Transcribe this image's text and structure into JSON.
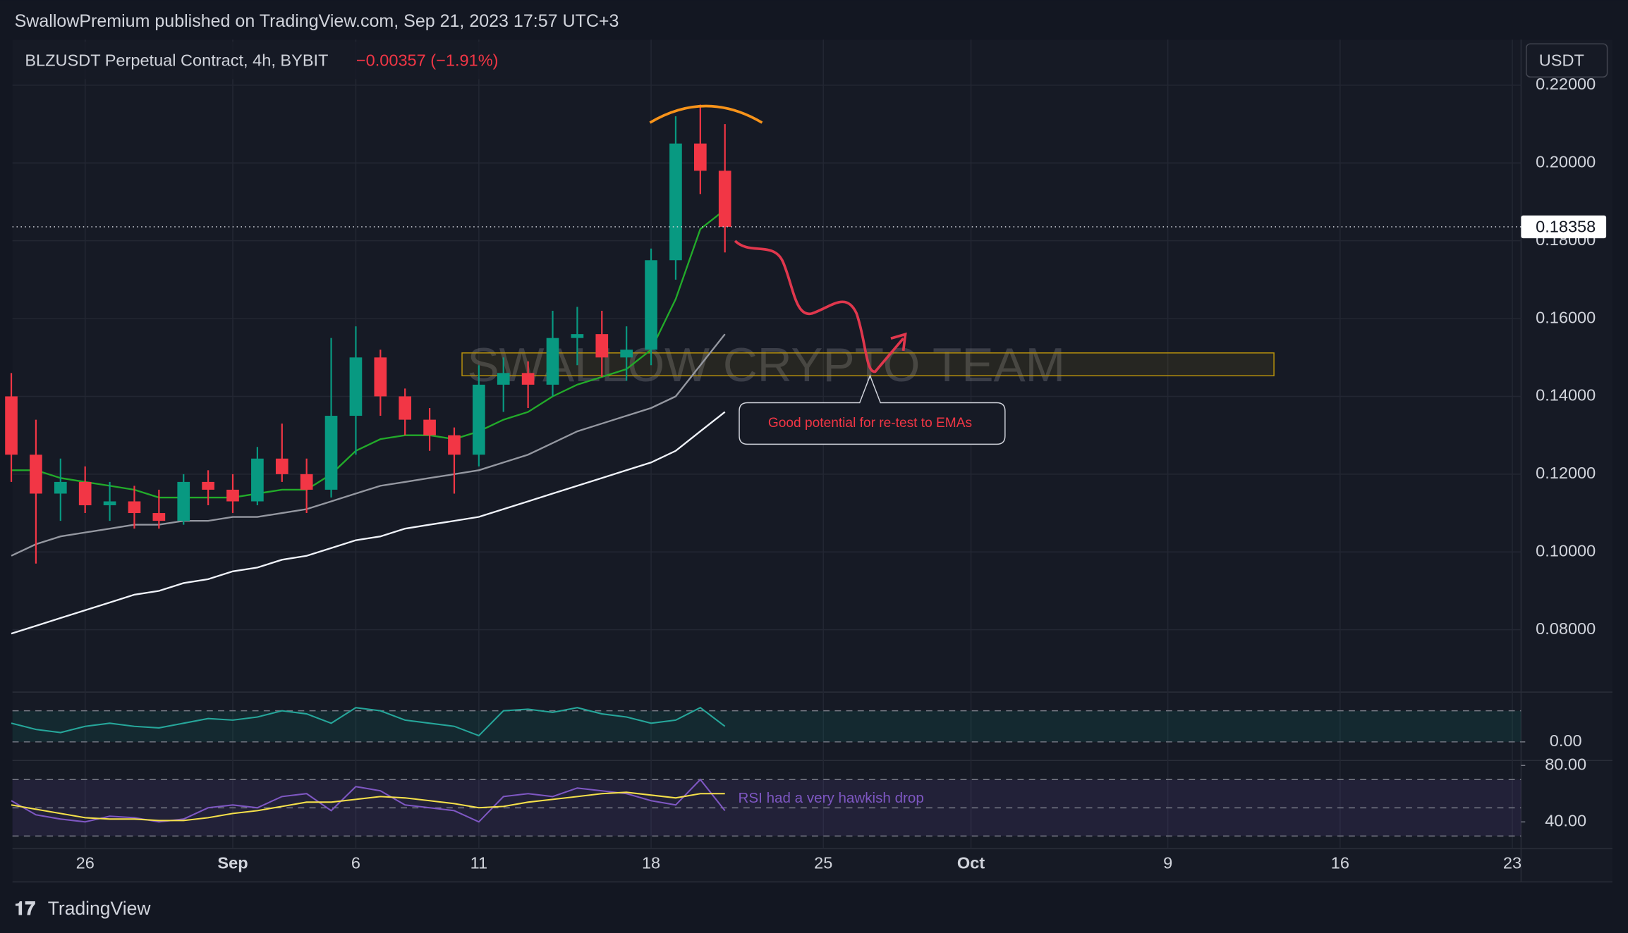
{
  "header": {
    "publisher": "SwallowPremium published on TradingView.com, Sep 21, 2023 17:57 UTC+3",
    "symbol": "BLZUSDT Perpetual Contract, 4h, BYBIT",
    "change": "−0.00357 (−1.91%)",
    "currency": "USDT",
    "brand": "TradingView"
  },
  "chart_data": [
    {
      "type": "candlestick",
      "watermark": "SWALLOW CRYPTO TEAM",
      "annotation": "Good potential for re-test to EMAs",
      "up_color": "#089981",
      "down_color": "#f23645",
      "grid": true,
      "categories": [
        null,
        null,
        null,
        "26",
        null,
        null,
        null,
        null,
        null,
        "Sep",
        null,
        null,
        null,
        null,
        "6",
        null,
        null,
        null,
        null,
        "11",
        null,
        null,
        null,
        null,
        null,
        null,
        "18",
        null,
        null,
        null,
        null,
        null,
        null,
        "25",
        null,
        null,
        null,
        null,
        null,
        "Oct",
        null,
        null,
        null,
        null,
        null,
        null,
        null,
        "9",
        null,
        null,
        null,
        null,
        null,
        null,
        "16",
        null,
        null,
        null,
        null,
        null,
        null,
        "23"
      ],
      "open": [
        0.14,
        0.125,
        0.115,
        0.118,
        0.112,
        0.113,
        0.11,
        0.108,
        0.118,
        0.116,
        0.113,
        0.124,
        0.12,
        0.116,
        0.135,
        0.15,
        0.14,
        0.134,
        0.13,
        0.125,
        0.143,
        0.146,
        0.143,
        0.155,
        0.156,
        0.15,
        0.152,
        0.175,
        0.205,
        0.198,
        null,
        null,
        null,
        null,
        null,
        null,
        null,
        null,
        null,
        null,
        null,
        null,
        null,
        null,
        null,
        null,
        null,
        null,
        null,
        null,
        null,
        null,
        null,
        null,
        null,
        null,
        null,
        null,
        null,
        null,
        null,
        null
      ],
      "high": [
        0.146,
        0.134,
        0.124,
        0.122,
        0.118,
        0.117,
        0.116,
        0.12,
        0.121,
        0.12,
        0.127,
        0.133,
        0.124,
        0.155,
        0.158,
        0.152,
        0.142,
        0.137,
        0.132,
        0.148,
        0.15,
        0.149,
        0.162,
        0.163,
        0.162,
        0.158,
        0.178,
        0.212,
        0.215,
        0.21,
        null,
        null,
        null,
        null,
        null,
        null,
        null,
        null,
        null,
        null,
        null,
        null,
        null,
        null,
        null,
        null,
        null,
        null,
        null,
        null,
        null,
        null,
        null,
        null,
        null,
        null,
        null,
        null,
        null,
        null,
        null,
        null
      ],
      "low": [
        0.118,
        0.097,
        0.108,
        0.11,
        0.108,
        0.106,
        0.106,
        0.107,
        0.112,
        0.11,
        0.112,
        0.118,
        0.11,
        0.114,
        0.125,
        0.135,
        0.13,
        0.126,
        0.115,
        0.122,
        0.136,
        0.137,
        0.14,
        0.148,
        0.145,
        0.144,
        0.148,
        0.17,
        0.192,
        0.177,
        null,
        null,
        null,
        null,
        null,
        null,
        null,
        null,
        null,
        null,
        null,
        null,
        null,
        null,
        null,
        null,
        null,
        null,
        null,
        null,
        null,
        null,
        null,
        null,
        null,
        null,
        null,
        null,
        null,
        null,
        null,
        null
      ],
      "close": [
        0.125,
        0.115,
        0.118,
        0.112,
        0.113,
        0.11,
        0.108,
        0.118,
        0.116,
        0.113,
        0.124,
        0.12,
        0.116,
        0.135,
        0.15,
        0.14,
        0.134,
        0.13,
        0.125,
        0.143,
        0.146,
        0.143,
        0.155,
        0.156,
        0.15,
        0.152,
        0.175,
        0.205,
        0.198,
        0.18358,
        null,
        null,
        null,
        null,
        null,
        null,
        null,
        null,
        null,
        null,
        null,
        null,
        null,
        null,
        null,
        null,
        null,
        null,
        null,
        null,
        null,
        null,
        null,
        null,
        null,
        null,
        null,
        null,
        null,
        null,
        null,
        null
      ],
      "series": [
        {
          "color": "#f0f3fa",
          "values": [
            0.079,
            0.081,
            0.083,
            0.085,
            0.087,
            0.089,
            0.09,
            0.092,
            0.093,
            0.095,
            0.096,
            0.098,
            0.099,
            0.101,
            0.103,
            0.104,
            0.106,
            0.107,
            0.108,
            0.109,
            0.111,
            0.113,
            0.115,
            0.117,
            0.119,
            0.121,
            0.123,
            0.126,
            0.131,
            0.136,
            null,
            null,
            null,
            null,
            null,
            null,
            null,
            null,
            null,
            null,
            null,
            null,
            null,
            null,
            null,
            null,
            null,
            null,
            null,
            null,
            null,
            null,
            null,
            null,
            null,
            null,
            null,
            null,
            null,
            null,
            null,
            null
          ]
        },
        {
          "color": "#9598a1",
          "values": [
            0.099,
            0.102,
            0.104,
            0.105,
            0.106,
            0.107,
            0.107,
            0.108,
            0.108,
            0.109,
            0.109,
            0.11,
            0.111,
            0.113,
            0.115,
            0.117,
            0.118,
            0.119,
            0.12,
            0.121,
            0.123,
            0.125,
            0.128,
            0.131,
            0.133,
            0.135,
            0.137,
            0.14,
            0.148,
            0.156,
            null,
            null,
            null,
            null,
            null,
            null,
            null,
            null,
            null,
            null,
            null,
            null,
            null,
            null,
            null,
            null,
            null,
            null,
            null,
            null,
            null,
            null,
            null,
            null,
            null,
            null,
            null,
            null,
            null,
            null,
            null,
            null
          ]
        },
        {
          "color": "#22ab2a",
          "values": [
            0.121,
            0.121,
            0.119,
            0.118,
            0.117,
            0.116,
            0.114,
            0.114,
            0.114,
            0.114,
            0.115,
            0.116,
            0.116,
            0.12,
            0.126,
            0.129,
            0.13,
            0.13,
            0.129,
            0.131,
            0.134,
            0.136,
            0.14,
            0.143,
            0.145,
            0.147,
            0.152,
            0.165,
            0.183,
            0.188,
            null,
            null,
            null,
            null,
            null,
            null,
            null,
            null,
            null,
            null,
            null,
            null,
            null,
            null,
            null,
            null,
            null,
            null,
            null,
            null,
            null,
            null,
            null,
            null,
            null,
            null,
            null,
            null,
            null,
            null,
            null,
            null
          ]
        }
      ],
      "ylim": [
        0.0645,
        0.2317
      ],
      "yticks": [
        {
          "value": 0.08,
          "label": "0.08000"
        },
        {
          "value": 0.1,
          "label": "0.10000"
        },
        {
          "value": 0.12,
          "label": "0.12000"
        },
        {
          "value": 0.14,
          "label": "0.14000"
        },
        {
          "value": 0.16,
          "label": "0.16000"
        },
        {
          "value": 0.18,
          "label": "0.18000"
        },
        {
          "value": 0.2,
          "label": "0.20000"
        },
        {
          "value": 0.22,
          "label": "0.22000"
        }
      ],
      "last_price": 0.18358
    },
    {
      "type": "line",
      "band_color": "rgba(8,153,129,0.12)",
      "levels": [
        0.02,
        0
      ],
      "series": [
        {
          "color": "#26a69a",
          "values": [
            0.012,
            0.008,
            0.006,
            0.01,
            0.012,
            0.01,
            0.009,
            0.012,
            0.015,
            0.014,
            0.016,
            0.02,
            0.018,
            0.012,
            0.022,
            0.02,
            0.014,
            0.012,
            0.01,
            0.004,
            0.02,
            0.021,
            0.019,
            0.022,
            0.018,
            0.016,
            0.012,
            0.014,
            0.022,
            0.01
          ]
        }
      ],
      "ylim": [
        -0.01,
        0.03
      ],
      "yticks": [
        {
          "value": 0,
          "label": "0.00"
        }
      ]
    },
    {
      "type": "line",
      "annotation": "RSI had a very hawkish drop",
      "band_color": "rgba(126,87,194,0.12)",
      "levels": [
        70,
        50,
        30
      ],
      "series": [
        {
          "color": "#7e57c2",
          "values": [
            55,
            45,
            42,
            40,
            44,
            43,
            40,
            42,
            50,
            52,
            50,
            58,
            60,
            48,
            65,
            62,
            52,
            50,
            48,
            40,
            58,
            60,
            58,
            64,
            62,
            60,
            55,
            52,
            70,
            48
          ]
        },
        {
          "color": "#f5e04a",
          "values": [
            52,
            49,
            46,
            43,
            42,
            42,
            41,
            41,
            43,
            46,
            48,
            51,
            54,
            54,
            56,
            58,
            57,
            55,
            53,
            50,
            51,
            54,
            56,
            58,
            60,
            61,
            59,
            57,
            60,
            60
          ]
        }
      ],
      "ylim": [
        21,
        82
      ],
      "yticks": [
        {
          "value": 40,
          "label": "40.00"
        },
        {
          "value": 80,
          "label": "80.00"
        }
      ]
    }
  ]
}
